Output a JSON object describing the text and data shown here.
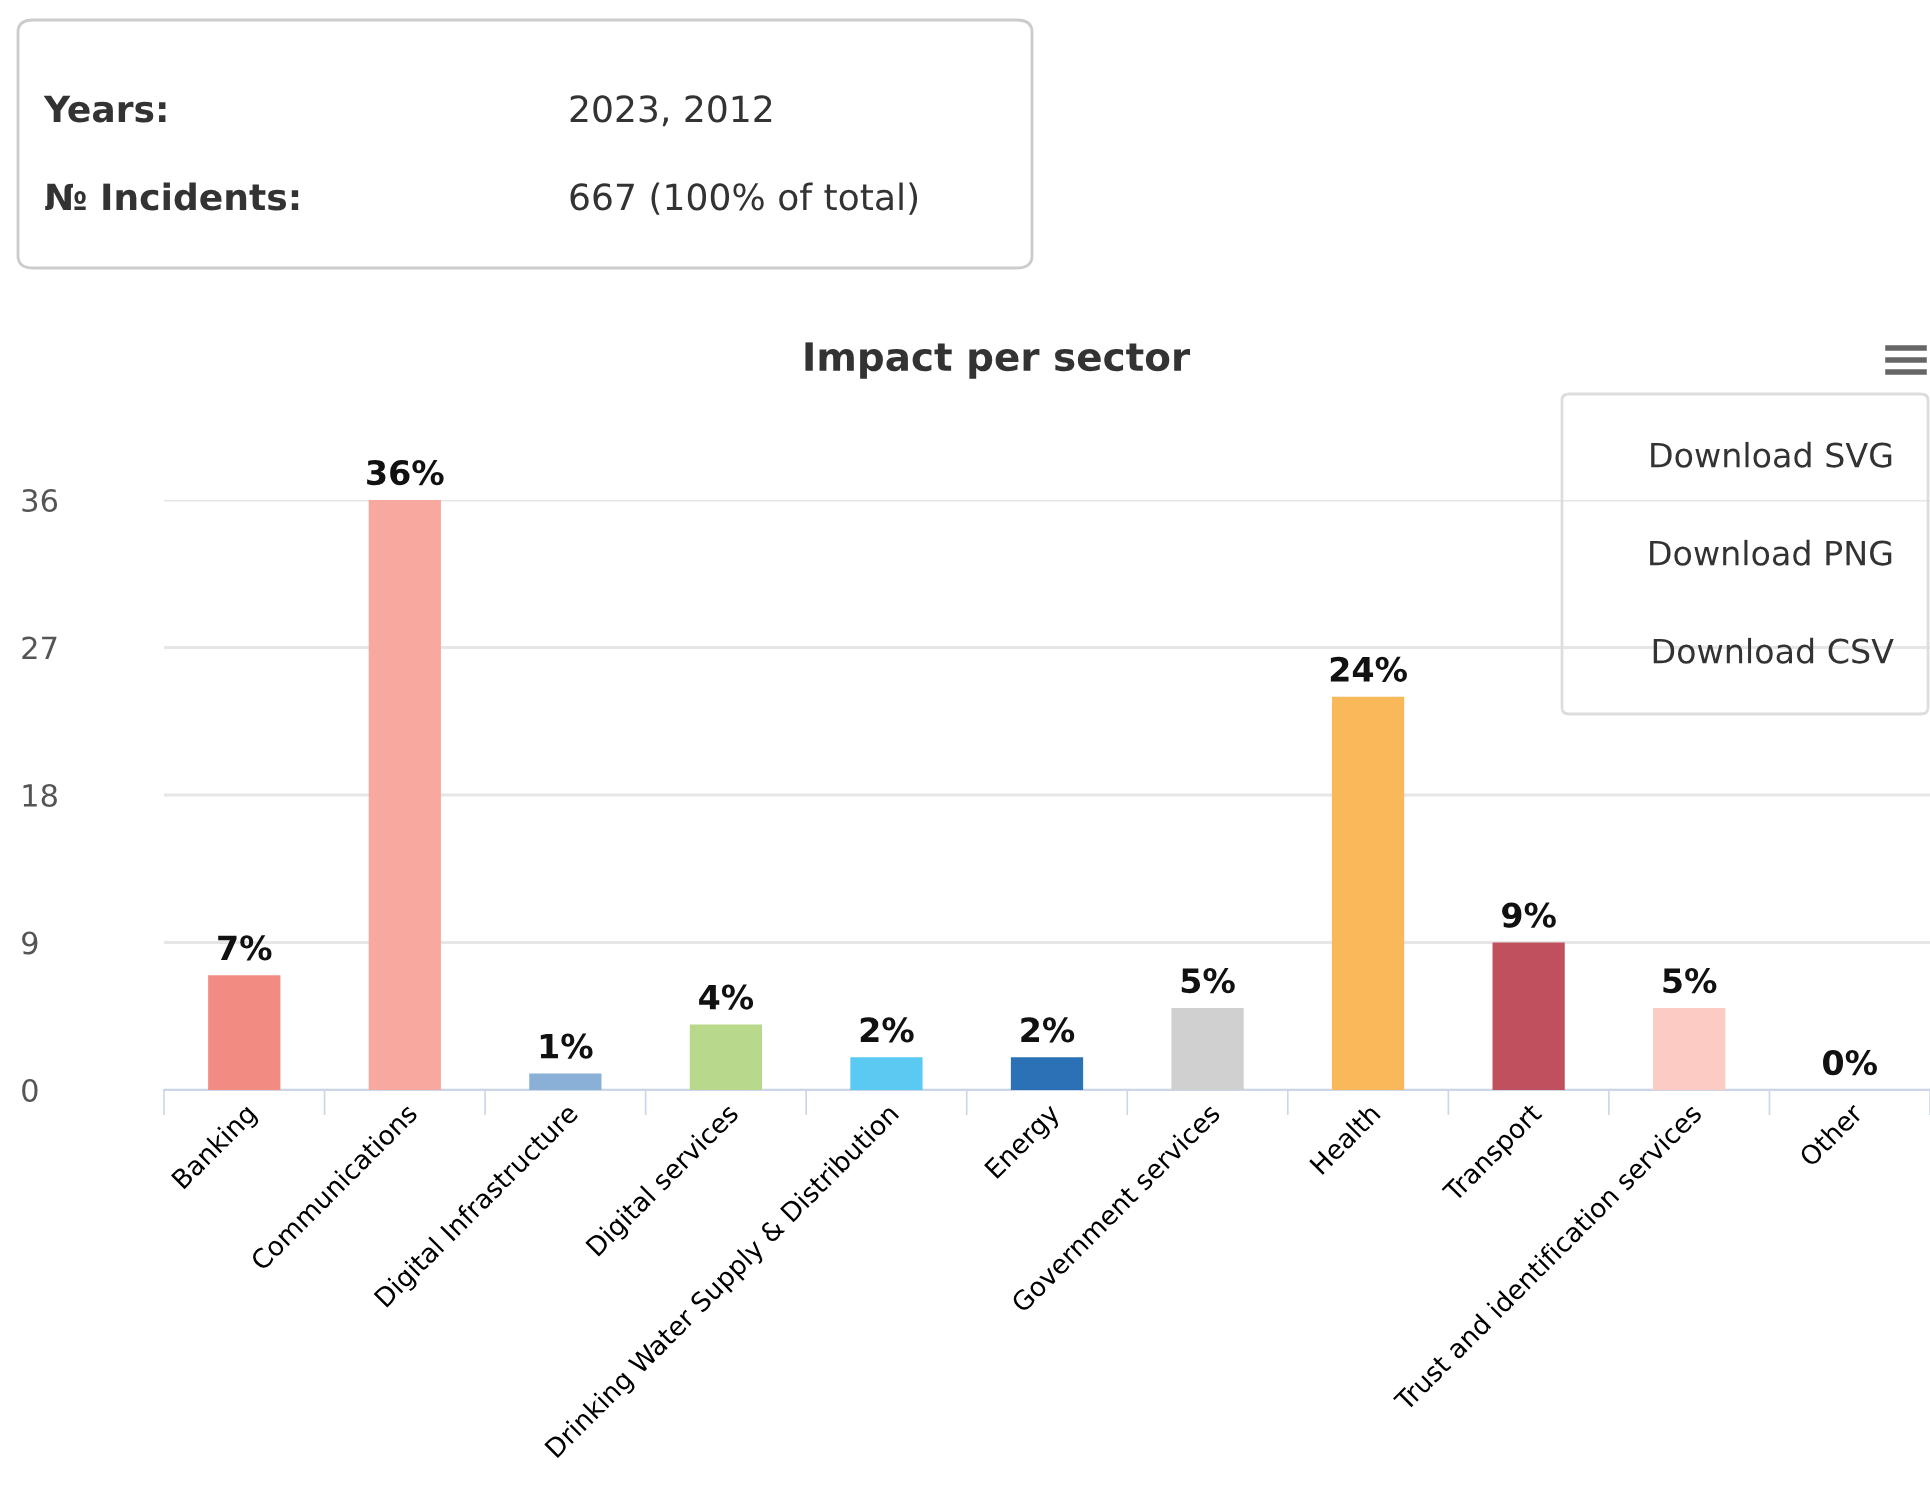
{
  "chart_data": {
    "type": "bar",
    "title": "Impact per sector",
    "categories": [
      "Banking",
      "Communications",
      "Digital Infrastructure",
      "Digital services",
      "Drinking Water Supply & Distribution",
      "Energy",
      "Government services",
      "Health",
      "Transport",
      "Trust and identification services",
      "Other"
    ],
    "values": [
      7,
      36,
      1,
      4,
      2,
      2,
      5,
      24,
      9,
      5,
      0
    ],
    "colors": [
      "#f28b82",
      "#f7a9a0",
      "#8ab0d8",
      "#b8d98b",
      "#5bcaf2",
      "#2a72b5",
      "#d0d0d0",
      "#f9b85a",
      "#c0505e",
      "#fbcbc4",
      "#d0d0d0"
    ],
    "value_labels": [
      "7%",
      "36%",
      "1%",
      "4%",
      "2%",
      "2%",
      "5%",
      "24%",
      "9%",
      "5%",
      "0%"
    ],
    "ylim": [
      0,
      36
    ],
    "yticks": [
      0,
      9,
      18,
      27,
      36
    ],
    "grid": "y",
    "legend": false,
    "annotations": [
      "Years:",
      "2023, 2012",
      "№ Incidents:",
      "667 (100% of total)",
      "Download SVG",
      "Download PNG",
      "Download CSV"
    ]
  }
}
